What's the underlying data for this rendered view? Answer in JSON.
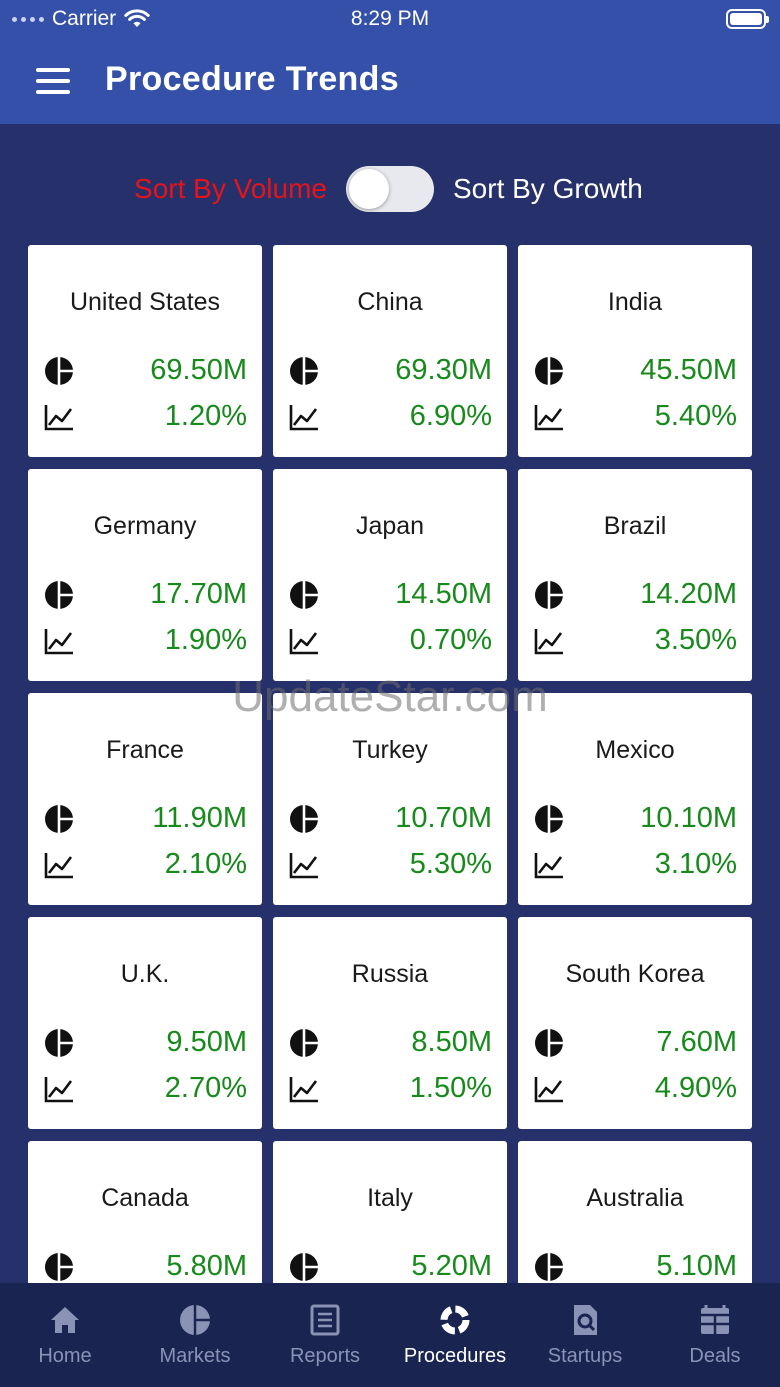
{
  "status_bar": {
    "carrier": "Carrier",
    "time": "8:29 PM"
  },
  "header": {
    "title": "Procedure Trends"
  },
  "sort": {
    "left_label": "Sort By Volume",
    "right_label": "Sort By Growth",
    "toggle_on": false
  },
  "countries": [
    {
      "name": "United States",
      "volume": "69.50M",
      "growth": "1.20%"
    },
    {
      "name": "China",
      "volume": "69.30M",
      "growth": "6.90%"
    },
    {
      "name": "India",
      "volume": "45.50M",
      "growth": "5.40%"
    },
    {
      "name": "Germany",
      "volume": "17.70M",
      "growth": "1.90%"
    },
    {
      "name": "Japan",
      "volume": "14.50M",
      "growth": "0.70%"
    },
    {
      "name": "Brazil",
      "volume": "14.20M",
      "growth": "3.50%"
    },
    {
      "name": "France",
      "volume": "11.90M",
      "growth": "2.10%"
    },
    {
      "name": "Turkey",
      "volume": "10.70M",
      "growth": "5.30%"
    },
    {
      "name": "Mexico",
      "volume": "10.10M",
      "growth": "3.10%"
    },
    {
      "name": "U.K.",
      "volume": "9.50M",
      "growth": "2.70%"
    },
    {
      "name": "Russia",
      "volume": "8.50M",
      "growth": "1.50%"
    },
    {
      "name": "South Korea",
      "volume": "7.60M",
      "growth": "4.90%"
    },
    {
      "name": "Canada",
      "volume": "5.80M",
      "growth": ""
    },
    {
      "name": "Italy",
      "volume": "5.20M",
      "growth": ""
    },
    {
      "name": "Australia",
      "volume": "5.10M",
      "growth": ""
    }
  ],
  "watermark": "UpdateStar.com",
  "tabs": [
    {
      "label": "Home",
      "icon": "home-icon",
      "active": false
    },
    {
      "label": "Markets",
      "icon": "pie-chart-icon",
      "active": false
    },
    {
      "label": "Reports",
      "icon": "report-icon",
      "active": false
    },
    {
      "label": "Procedures",
      "icon": "procedures-icon",
      "active": true
    },
    {
      "label": "Startups",
      "icon": "startups-icon",
      "active": false
    },
    {
      "label": "Deals",
      "icon": "deals-icon",
      "active": false
    }
  ],
  "colors": {
    "accent_red": "#e5141b",
    "value_green": "#188a1c",
    "header_blue": "#3450a8",
    "background_navy": "#26306a"
  }
}
